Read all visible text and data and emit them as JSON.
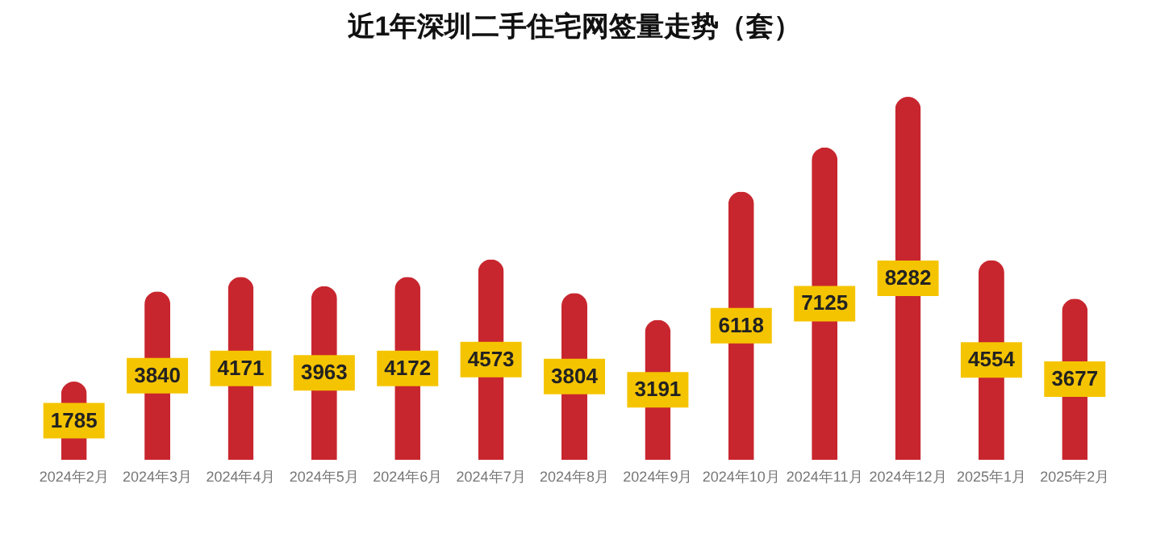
{
  "chart_data": {
    "type": "bar",
    "title": "近1年深圳二手住宅网签量走势（套）",
    "categories": [
      "2024年2月",
      "2024年3月",
      "2024年4月",
      "2024年5月",
      "2024年6月",
      "2024年7月",
      "2024年8月",
      "2024年9月",
      "2024年10月",
      "2024年11月",
      "2024年12月",
      "2025年1月",
      "2025年2月"
    ],
    "values": [
      1785,
      3840,
      4171,
      3963,
      4172,
      4573,
      3804,
      3191,
      6118,
      7125,
      8282,
      4554,
      3677
    ],
    "color": "#c8262e",
    "data_labels": true
  }
}
